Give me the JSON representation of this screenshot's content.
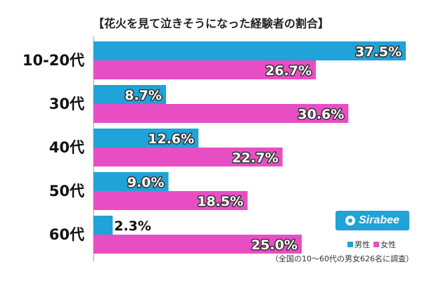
{
  "chart_data": {
    "type": "bar",
    "orientation": "horizontal",
    "title": "【花火を見て泣きそうになった経験者の割合】",
    "categories": [
      "10-20代",
      "30代",
      "40代",
      "50代",
      "60代"
    ],
    "series": [
      {
        "name": "男性",
        "color": "#1fa3d8",
        "values": [
          37.5,
          8.7,
          12.6,
          9.0,
          2.3
        ],
        "labels": [
          "37.5%",
          "8.7%",
          "12.6%",
          "9.0%",
          "2.3%"
        ]
      },
      {
        "name": "女性",
        "color": "#e84ec4",
        "values": [
          26.7,
          30.6,
          22.7,
          18.5,
          25.0
        ],
        "labels": [
          "26.7%",
          "30.6%",
          "22.7%",
          "18.5%",
          "25.0%"
        ]
      }
    ],
    "xlim": [
      0,
      40
    ],
    "legend": "bottom-right",
    "grid": false
  },
  "brand": {
    "logo_text": "Sirabee"
  },
  "footnote": "（全国の10〜60代の男女626名に調査）"
}
